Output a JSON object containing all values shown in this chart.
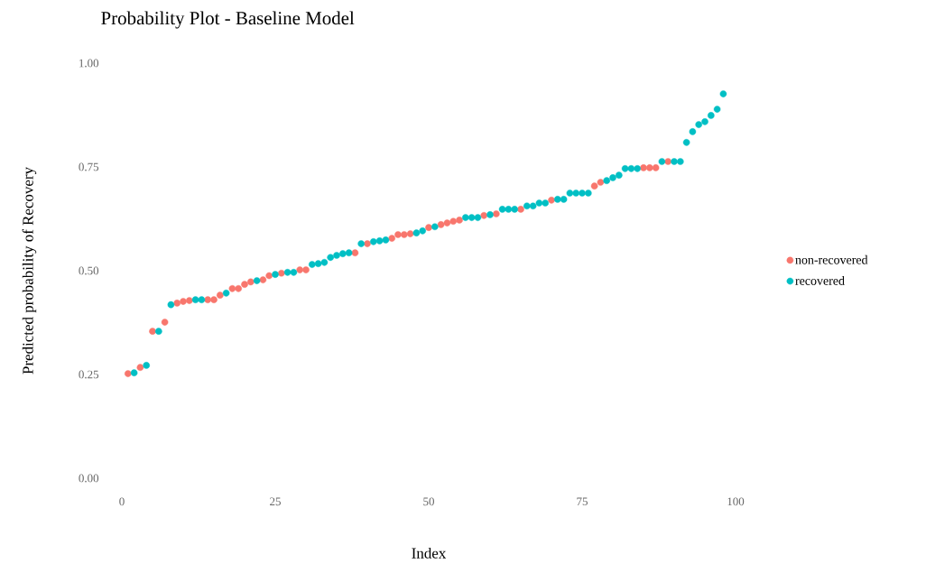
{
  "chart_data": {
    "type": "scatter",
    "title": "Probability Plot - Baseline Model",
    "xlabel": "Index",
    "ylabel": "Predicted probability of Recovery",
    "xlim": [
      0,
      100
    ],
    "ylim": [
      0,
      1
    ],
    "xticks": [
      0,
      25,
      50,
      75,
      100
    ],
    "yticks": [
      {
        "value": 0,
        "label": "0.00"
      },
      {
        "value": 0.25,
        "label": "0.25"
      },
      {
        "value": 0.5,
        "label": "0.50"
      },
      {
        "value": 0.75,
        "label": "0.75"
      },
      {
        "value": 1,
        "label": "1.00"
      }
    ],
    "legend": "right",
    "series": [
      {
        "name": "non-recovered",
        "color": "#f8766d",
        "x": [
          1,
          3,
          5,
          7,
          9,
          10,
          11,
          14,
          15,
          16,
          18,
          19,
          20,
          21,
          23,
          24,
          26,
          29,
          30,
          38,
          40,
          44,
          45,
          46,
          47,
          50,
          52,
          53,
          54,
          55,
          59,
          61,
          65,
          70,
          77,
          78,
          85,
          86,
          87,
          89
        ],
        "values": [
          0.252,
          0.267,
          0.354,
          0.376,
          0.422,
          0.426,
          0.428,
          0.43,
          0.43,
          0.441,
          0.457,
          0.457,
          0.467,
          0.473,
          0.478,
          0.488,
          0.494,
          0.502,
          0.502,
          0.543,
          0.565,
          0.578,
          0.587,
          0.587,
          0.589,
          0.604,
          0.611,
          0.615,
          0.619,
          0.622,
          0.633,
          0.637,
          0.648,
          0.67,
          0.704,
          0.713,
          0.748,
          0.748,
          0.748,
          0.763
        ]
      },
      {
        "name": "recovered",
        "color": "#00bfc4",
        "x": [
          2,
          4,
          6,
          8,
          12,
          13,
          17,
          22,
          25,
          27,
          28,
          31,
          32,
          33,
          34,
          35,
          36,
          37,
          39,
          41,
          42,
          43,
          48,
          49,
          51,
          56,
          57,
          58,
          60,
          62,
          63,
          64,
          66,
          67,
          68,
          69,
          71,
          72,
          73,
          74,
          75,
          76,
          79,
          80,
          81,
          82,
          83,
          84,
          88,
          90,
          91,
          92,
          93,
          94,
          95,
          96,
          97,
          98
        ],
        "values": [
          0.254,
          0.272,
          0.354,
          0.418,
          0.43,
          0.43,
          0.446,
          0.476,
          0.491,
          0.496,
          0.496,
          0.515,
          0.517,
          0.52,
          0.532,
          0.537,
          0.541,
          0.543,
          0.565,
          0.57,
          0.572,
          0.574,
          0.591,
          0.596,
          0.606,
          0.628,
          0.628,
          0.628,
          0.635,
          0.648,
          0.648,
          0.648,
          0.656,
          0.656,
          0.663,
          0.663,
          0.672,
          0.672,
          0.687,
          0.687,
          0.687,
          0.687,
          0.717,
          0.724,
          0.73,
          0.746,
          0.746,
          0.746,
          0.763,
          0.763,
          0.763,
          0.809,
          0.835,
          0.852,
          0.859,
          0.874,
          0.889,
          0.926
        ]
      }
    ]
  }
}
